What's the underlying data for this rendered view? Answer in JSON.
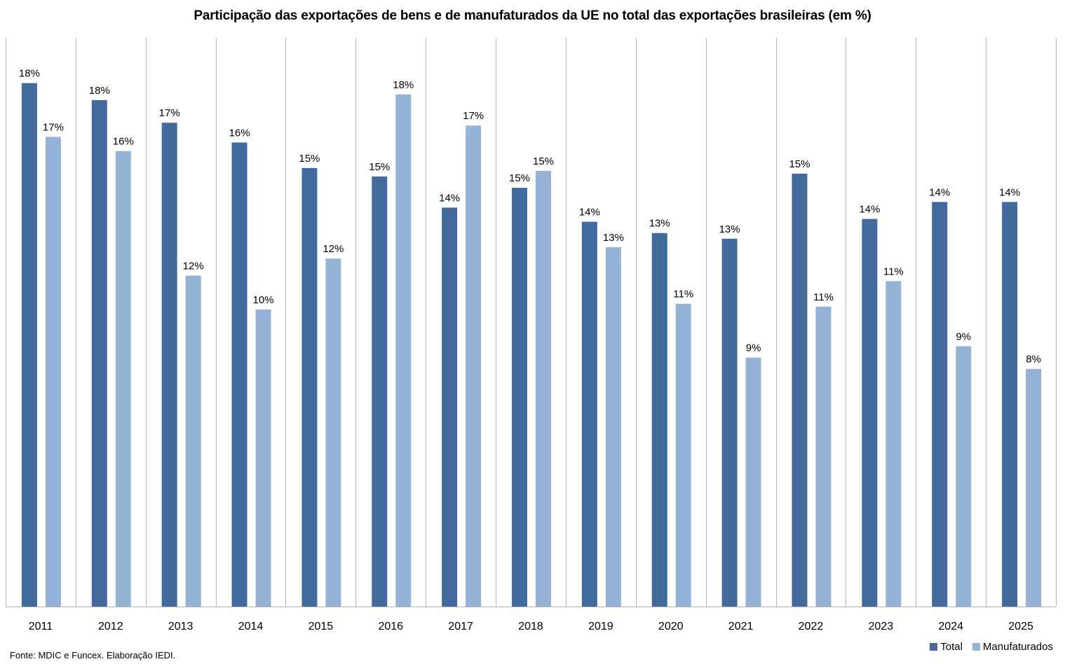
{
  "chart_data": {
    "type": "bar",
    "title": "Participação das exportações de bens e de manufaturados da UE no total das exportações brasileiras (em %)",
    "xlabel": "",
    "ylabel": "",
    "ylim": [
      0,
      20.1
    ],
    "grid": "vertical category separators",
    "legend_position": "bottom-right",
    "categories": [
      "2011",
      "2012",
      "2013",
      "2014",
      "2015",
      "2016",
      "2017",
      "2018",
      "2019",
      "2020",
      "2021",
      "2022",
      "2023",
      "2024",
      "2025"
    ],
    "series": [
      {
        "name": "Total",
        "color": "#426A9C",
        "values": [
          18.5,
          17.9,
          17.1,
          16.4,
          15.5,
          15.2,
          14.1,
          14.8,
          13.6,
          13.2,
          13.0,
          15.3,
          13.7,
          14.3,
          14.3
        ],
        "labels": [
          "18%",
          "18%",
          "17%",
          "16%",
          "15%",
          "15%",
          "14%",
          "15%",
          "14%",
          "13%",
          "13%",
          "15%",
          "14%",
          "14%",
          "14%"
        ]
      },
      {
        "name": "Manufaturados",
        "color": "#95B3D7",
        "values": [
          16.6,
          16.1,
          11.7,
          10.5,
          12.3,
          18.1,
          17.0,
          15.4,
          12.7,
          10.7,
          8.8,
          10.6,
          11.5,
          9.2,
          8.4
        ],
        "labels": [
          "17%",
          "16%",
          "12%",
          "10%",
          "12%",
          "18%",
          "17%",
          "15%",
          "13%",
          "11%",
          "9%",
          "11%",
          "11%",
          "9%",
          "8%"
        ]
      }
    ]
  },
  "source_note": "Fonte: MDIC e Funcex. Elaboração IEDI."
}
